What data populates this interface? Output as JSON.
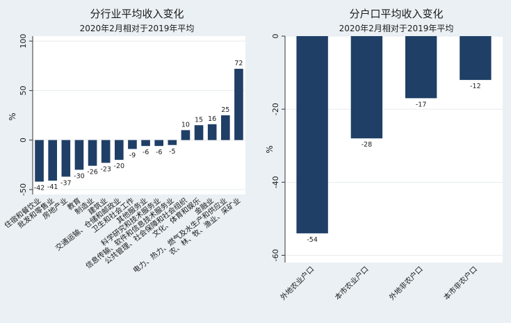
{
  "colors": {
    "bar": "#1f3f66",
    "plot_bg": "#ffffff",
    "outer_bg": "#eaf0f4",
    "grid": "#e6ebef",
    "axis": "#333333"
  },
  "chart_data": [
    {
      "type": "bar",
      "title": "分行业平均收入变化",
      "subtitle": "2020年2月相对于2019年平均",
      "ylabel": "%",
      "xlabel": "",
      "ylim": [
        -55,
        105
      ],
      "yticks": [
        -50,
        0,
        50,
        100
      ],
      "grid": true,
      "categories": [
        "住宿和餐饮业",
        "批发和零售业",
        "房地产业",
        "教育",
        "制造业",
        "建筑业",
        "交通运输、仓储和邮政业",
        "卫生和社会工作",
        "其他服务业",
        "科学研究和技术服务业",
        "信息传输、软件和信息技术服务业",
        "公共管理、社会保障和社会组织",
        "文化、体育和娱乐",
        "金融业",
        "电力、热力、燃气及水生产和供应业",
        "农、林、牧、渔业、采矿业"
      ],
      "values": [
        -42,
        -41,
        -37,
        -30,
        -26,
        -23,
        -20,
        -9,
        -6,
        -6,
        -5,
        10,
        15,
        16,
        25,
        72
      ],
      "data_labels": [
        "-42",
        "-41",
        "-37",
        "-30",
        "-26",
        "-23",
        "-20",
        "-9",
        "-6",
        "-6",
        "-5",
        "10",
        "15",
        "16",
        "25",
        "72"
      ]
    },
    {
      "type": "bar",
      "title": "分户口平均收入变化",
      "subtitle": "2020年2月相对于2019年平均",
      "ylabel": "%",
      "xlabel": "",
      "ylim": [
        -62,
        0
      ],
      "yticks": [
        -60,
        -40,
        -20,
        0
      ],
      "grid": true,
      "categories": [
        "外地农业户口",
        "本市农业户口",
        "外地非农户口",
        "本市非农户口"
      ],
      "values": [
        -54,
        -28,
        -17,
        -12
      ],
      "data_labels": [
        "-54",
        "-28",
        "-17",
        "-12"
      ]
    }
  ]
}
